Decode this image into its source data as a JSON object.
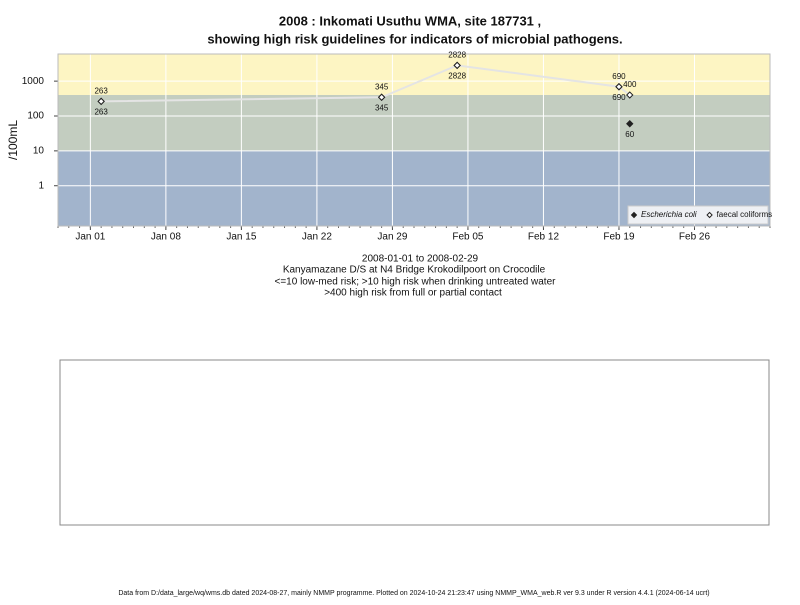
{
  "chart_data": {
    "type": "scatter",
    "title": "2008 : Inkomati Usuthu WMA, site 187731 ,",
    "title2": "showing high risk guidelines for indicators of microbial pathogens.",
    "ylabel": "/100mL",
    "notes": [
      "2008-01-01 to 2008-02-29",
      "Kanyamazane D/S at N4 Bridge Krokodilpoort on Crocodile",
      "<=10 low-med risk; >10 high risk when drinking untreated water",
      ">400 high risk from full or partial contact"
    ],
    "footer": "Data from D:/data_large/wq/wms.db dated 2024-08-27, mainly NMMP programme. Plotted on 2024-10-24 21:23:47 using NMMP_WMA_web.R ver 9.3 under R version 4.4.1 (2024-06-14 ucrt)",
    "log_y": true,
    "grid": true,
    "ylim": [
      0.07,
      6000
    ],
    "yticks": [
      1,
      10,
      100,
      1000
    ],
    "xlim": [
      "2007-12-29",
      "2008-03-04"
    ],
    "xticks": [
      {
        "value": "2008-01-01",
        "label": "Jan 01"
      },
      {
        "value": "2008-01-08",
        "label": "Jan 08"
      },
      {
        "value": "2008-01-15",
        "label": "Jan 15"
      },
      {
        "value": "2008-01-22",
        "label": "Jan 22"
      },
      {
        "value": "2008-01-29",
        "label": "Jan 29"
      },
      {
        "value": "2008-02-05",
        "label": "Feb 05"
      },
      {
        "value": "2008-02-12",
        "label": "Feb 12"
      },
      {
        "value": "2008-02-19",
        "label": "Feb 19"
      },
      {
        "value": "2008-02-26",
        "label": "Feb 26"
      }
    ],
    "thresholds": [
      10,
      400
    ],
    "band_colors": [
      "#a2b4cc",
      "#c3cdc0",
      "#fdf5c3"
    ],
    "legend": "bottom-right",
    "series": [
      {
        "name": "Escherichia coli",
        "color": "#222222",
        "marker": "filled",
        "label_side": "below",
        "x": [
          "2008-01-02",
          "2008-01-28",
          "2008-02-04",
          "2008-02-19",
          "2008-02-20"
        ],
        "values": [
          263,
          345,
          2828,
          690,
          60
        ]
      },
      {
        "name": "faecal coliforms",
        "color": "#222222",
        "marker": "open",
        "label_side": "above",
        "line_color": "#e4e4e4",
        "x": [
          "2008-01-02",
          "2008-01-28",
          "2008-02-04",
          "2008-02-19",
          "2008-02-20"
        ],
        "values": [
          263,
          345,
          2828,
          690,
          400
        ]
      }
    ]
  }
}
